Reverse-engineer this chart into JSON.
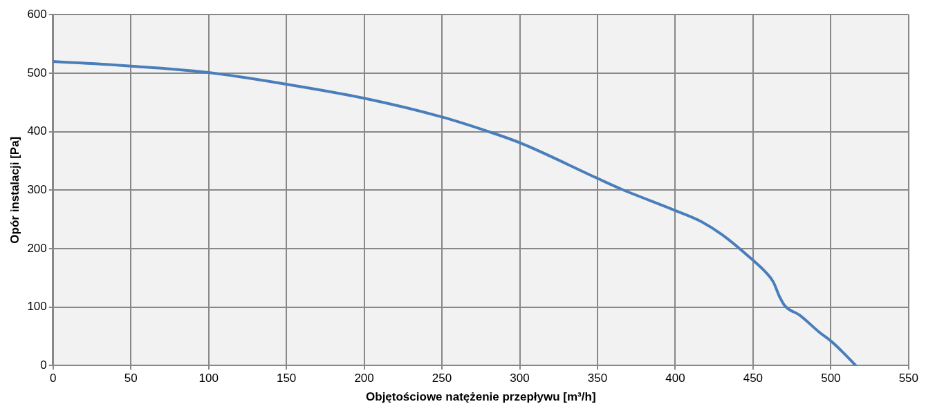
{
  "chart_data": {
    "type": "line",
    "xlabel": "Objętościowe natężenie przepływu [m³/h]",
    "ylabel": "Opór instalacji [Pa]",
    "x": [
      0,
      50,
      100,
      150,
      200,
      250,
      280,
      300,
      350,
      365,
      400,
      416,
      430,
      450,
      458,
      463,
      467,
      470.5,
      480,
      493,
      500,
      508,
      516
    ],
    "series": [
      {
        "color": "#4a7ebb",
        "values": [
          520,
          512,
          501,
          481,
          457,
          425,
          400,
          381,
          320,
          302,
          265,
          247,
          224,
          180,
          160,
          143,
          118,
          102,
          86,
          56,
          42,
          22,
          0
        ]
      }
    ],
    "xlim": [
      0,
      550
    ],
    "xticks": [
      0,
      50,
      100,
      150,
      200,
      250,
      300,
      350,
      400,
      450,
      500,
      550
    ],
    "ylim": [
      0,
      600
    ],
    "yticks": [
      0,
      100,
      200,
      300,
      400,
      500,
      600
    ],
    "grid": true,
    "legend": false,
    "marker": "none",
    "line_style": "solid"
  }
}
